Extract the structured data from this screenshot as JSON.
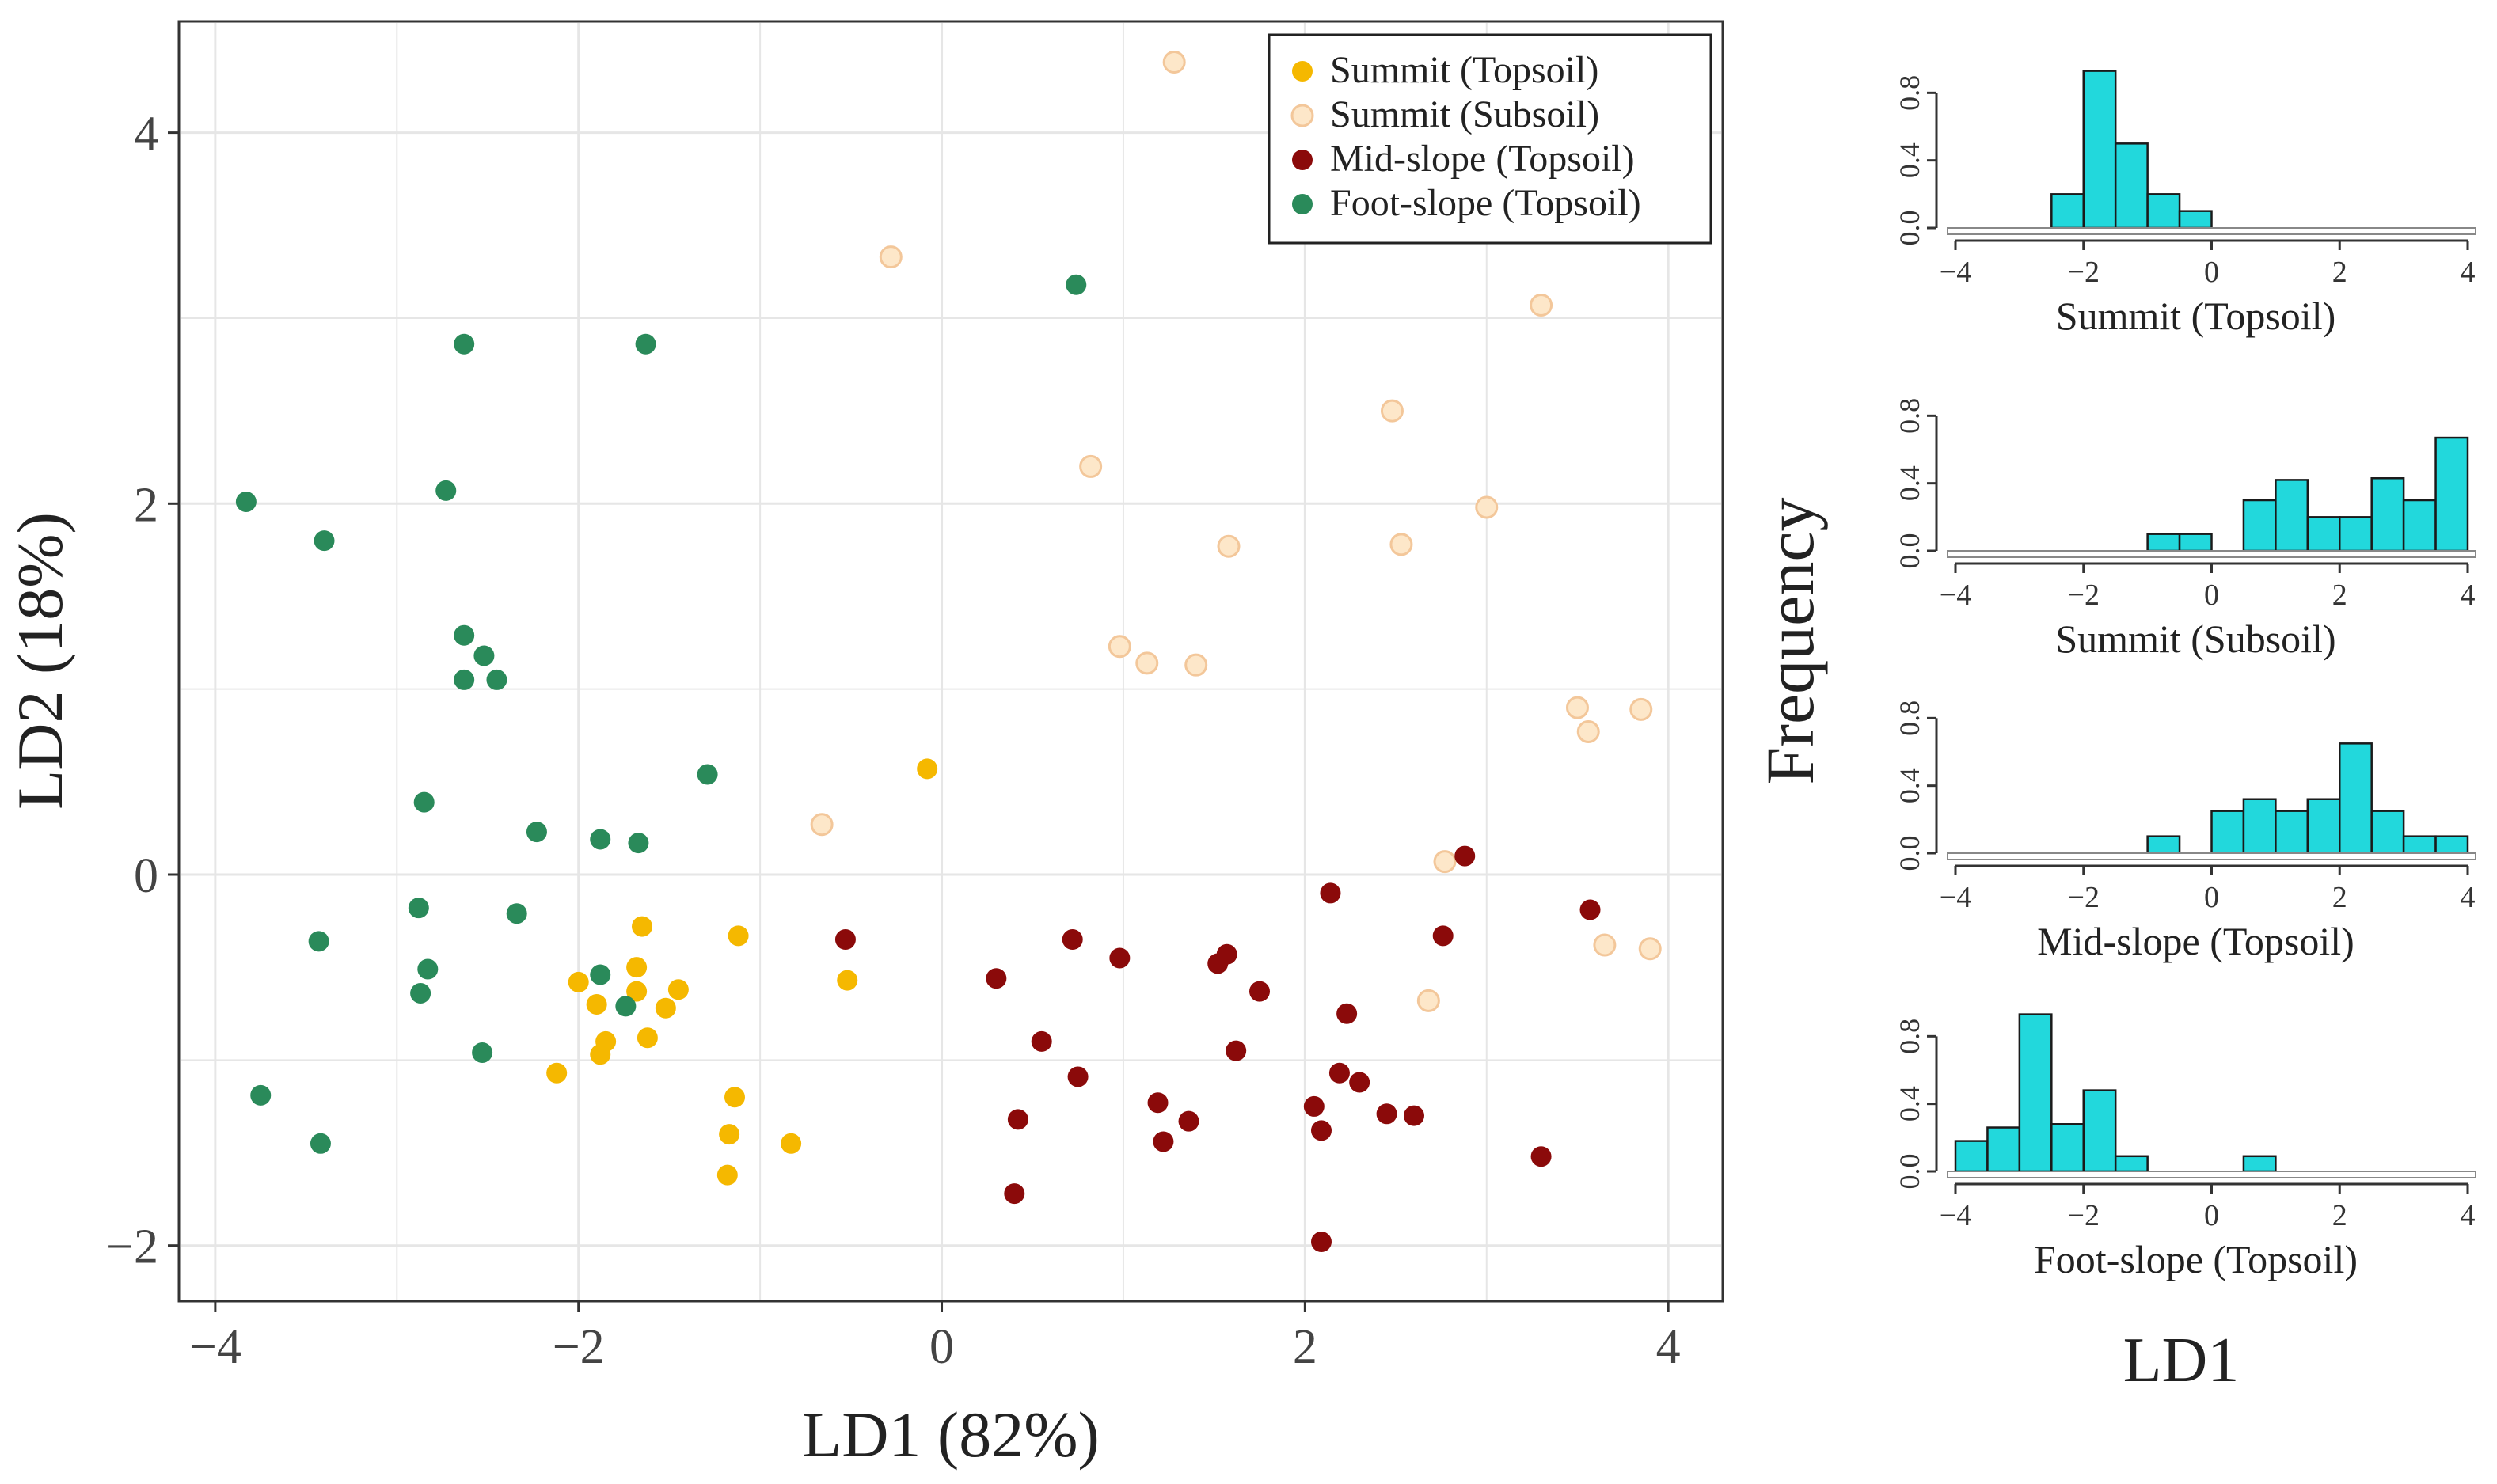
{
  "colors": {
    "summit_topsoil": "#f5b800",
    "summit_subsoil_fill": "#fde7c9",
    "summit_subsoil_edge": "#f3c79a",
    "midslope_topsoil": "#8b0a0a",
    "footslope_topsoil": "#2a8a5a",
    "histogram_bar": "#22d8dc",
    "grid": "#e6e6e6"
  },
  "chart_data": [
    {
      "type": "scatter",
      "title": "",
      "xlabel": "LD1 (82%)",
      "ylabel": "LD2 (18%)",
      "xlim": [
        -4.2,
        4.3
      ],
      "ylim": [
        -2.3,
        4.6
      ],
      "xticks": [
        -4,
        -2,
        0,
        2,
        4
      ],
      "yticks": [
        -2,
        0,
        2,
        4
      ],
      "xtick_labels": [
        "−4",
        "−2",
        "0",
        "2",
        "4"
      ],
      "ytick_labels": [
        "−2",
        "0",
        "2",
        "4"
      ],
      "grid": true,
      "legend_position": "top-right",
      "series": [
        {
          "name": "Summit (Topsoil)",
          "points": [
            [
              -0.08,
              0.57
            ],
            [
              -1.12,
              -0.33
            ],
            [
              -1.65,
              -0.28
            ],
            [
              -1.68,
              -0.5
            ],
            [
              -2.0,
              -0.58
            ],
            [
              -1.9,
              -0.7
            ],
            [
              -1.68,
              -0.63
            ],
            [
              -1.45,
              -0.62
            ],
            [
              -1.52,
              -0.72
            ],
            [
              -1.62,
              -0.88
            ],
            [
              -1.85,
              -0.9
            ],
            [
              -1.88,
              -0.97
            ],
            [
              -2.12,
              -1.07
            ],
            [
              -0.52,
              -0.57
            ],
            [
              -1.14,
              -1.2
            ],
            [
              -1.17,
              -1.4
            ],
            [
              -0.83,
              -1.45
            ],
            [
              -1.18,
              -1.62
            ]
          ]
        },
        {
          "name": "Summit (Subsoil)",
          "points": [
            [
              1.28,
              4.38
            ],
            [
              -0.28,
              3.33
            ],
            [
              3.3,
              3.07
            ],
            [
              2.48,
              2.5
            ],
            [
              0.82,
              2.2
            ],
            [
              3.0,
              1.98
            ],
            [
              1.58,
              1.77
            ],
            [
              2.53,
              1.78
            ],
            [
              0.98,
              1.23
            ],
            [
              1.13,
              1.14
            ],
            [
              1.4,
              1.13
            ],
            [
              3.5,
              0.9
            ],
            [
              3.56,
              0.77
            ],
            [
              3.85,
              0.89
            ],
            [
              -0.66,
              0.27
            ],
            [
              2.77,
              0.07
            ],
            [
              3.65,
              -0.38
            ],
            [
              3.9,
              -0.4
            ],
            [
              2.68,
              -0.68
            ]
          ]
        },
        {
          "name": "Mid-slope (Topsoil)",
          "points": [
            [
              2.88,
              0.1
            ],
            [
              2.14,
              -0.1
            ],
            [
              3.57,
              -0.19
            ],
            [
              -0.53,
              -0.35
            ],
            [
              0.72,
              -0.35
            ],
            [
              2.76,
              -0.33
            ],
            [
              0.98,
              -0.45
            ],
            [
              1.57,
              -0.43
            ],
            [
              1.52,
              -0.48
            ],
            [
              0.3,
              -0.56
            ],
            [
              1.75,
              -0.63
            ],
            [
              2.23,
              -0.75
            ],
            [
              0.55,
              -0.9
            ],
            [
              1.62,
              -0.95
            ],
            [
              2.19,
              -1.07
            ],
            [
              0.75,
              -1.09
            ],
            [
              2.3,
              -1.12
            ],
            [
              1.19,
              -1.23
            ],
            [
              2.05,
              -1.25
            ],
            [
              2.45,
              -1.29
            ],
            [
              2.6,
              -1.3
            ],
            [
              0.42,
              -1.32
            ],
            [
              1.36,
              -1.33
            ],
            [
              2.09,
              -1.38
            ],
            [
              1.22,
              -1.44
            ],
            [
              3.3,
              -1.52
            ],
            [
              0.4,
              -1.72
            ],
            [
              2.09,
              -1.98
            ]
          ]
        },
        {
          "name": "Foot-slope (Topsoil)",
          "points": [
            [
              0.74,
              3.18
            ],
            [
              -2.63,
              2.86
            ],
            [
              -1.63,
              2.86
            ],
            [
              -2.73,
              2.07
            ],
            [
              -3.83,
              2.01
            ],
            [
              -3.4,
              1.8
            ],
            [
              -2.63,
              1.29
            ],
            [
              -2.52,
              1.18
            ],
            [
              -2.63,
              1.05
            ],
            [
              -2.45,
              1.05
            ],
            [
              -1.29,
              0.54
            ],
            [
              -2.85,
              0.39
            ],
            [
              -2.23,
              0.23
            ],
            [
              -1.88,
              0.19
            ],
            [
              -1.67,
              0.17
            ],
            [
              -2.88,
              -0.18
            ],
            [
              -2.34,
              -0.21
            ],
            [
              -3.43,
              -0.36
            ],
            [
              -2.83,
              -0.51
            ],
            [
              -1.88,
              -0.54
            ],
            [
              -2.87,
              -0.64
            ],
            [
              -1.74,
              -0.71
            ],
            [
              -2.53,
              -0.96
            ],
            [
              -3.75,
              -1.19
            ],
            [
              -3.42,
              -1.45
            ]
          ]
        }
      ]
    },
    {
      "type": "bar",
      "subtype": "histogram",
      "title": "Summit  (Topsoil)",
      "xlim": [
        -4,
        4
      ],
      "ylim": [
        0,
        0.9
      ],
      "xticks": [
        "-4",
        "-2",
        "0",
        "2",
        "4"
      ],
      "yticks": [
        "0.0",
        "0.4",
        "0.8"
      ],
      "bin_edges": [
        -2.5,
        -2.0,
        -1.5,
        -1.0,
        -0.5,
        0.0
      ],
      "values": [
        0.2,
        0.93,
        0.5,
        0.2,
        0.1
      ]
    },
    {
      "type": "bar",
      "subtype": "histogram",
      "title": "Summit  (Subsoil)",
      "xlim": [
        -4,
        4
      ],
      "ylim": [
        0,
        0.9
      ],
      "xticks": [
        "-4",
        "-2",
        "0",
        "2",
        "4"
      ],
      "yticks": [
        "0.0",
        "0.4",
        "0.8"
      ],
      "bin_edges": [
        -1.0,
        -0.5,
        0.0,
        0.5,
        1.0,
        1.5,
        2.0,
        2.5,
        3.0,
        3.5,
        4.0
      ],
      "values": [
        0.1,
        0.1,
        0.0,
        0.3,
        0.42,
        0.2,
        0.2,
        0.43,
        0.3,
        0.67
      ]
    },
    {
      "type": "bar",
      "subtype": "histogram",
      "title": "Mid-slope  (Topsoil)",
      "xlim": [
        -4,
        4
      ],
      "ylim": [
        0,
        0.9
      ],
      "xticks": [
        "-4",
        "-2",
        "0",
        "2",
        "4"
      ],
      "yticks": [
        "0.0",
        "0.4",
        "0.8"
      ],
      "bin_edges": [
        -1.0,
        -0.5,
        0.0,
        0.5,
        1.0,
        1.5,
        2.0,
        2.5,
        3.0,
        3.5,
        4.0
      ],
      "values": [
        0.1,
        0.0,
        0.25,
        0.32,
        0.25,
        0.32,
        0.65,
        0.25,
        0.1,
        0.1
      ]
    },
    {
      "type": "bar",
      "subtype": "histogram",
      "title": "Foot-slope  (Topsoil)",
      "xlim": [
        -4,
        4
      ],
      "ylim": [
        0,
        0.9
      ],
      "xticks": [
        "-4",
        "-2",
        "0",
        "2",
        "4"
      ],
      "yticks": [
        "0.0",
        "0.4",
        "0.8"
      ],
      "bin_edges": [
        -4.0,
        -3.5,
        -3.0,
        -2.5,
        -2.0,
        -1.5,
        -1.0,
        -0.5,
        0.0,
        0.5,
        1.0
      ],
      "values": [
        0.18,
        0.26,
        0.93,
        0.28,
        0.48,
        0.09,
        0.0,
        0.0,
        0.0,
        0.09
      ]
    }
  ],
  "side_labels": {
    "ylabel": "Frequency",
    "xlabel": "LD1"
  }
}
